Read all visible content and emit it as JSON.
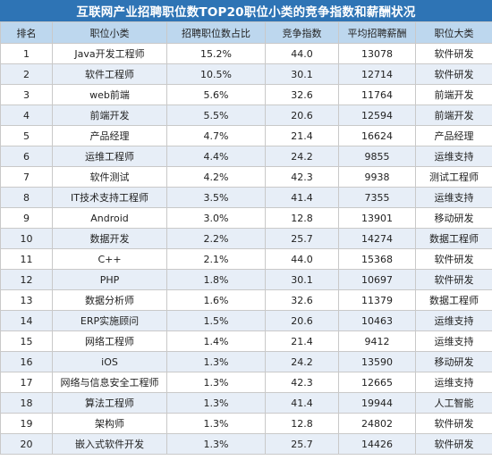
{
  "title": "互联网产业招聘职位数TOP20职位小类的竞争指数和薪酬状况",
  "columns": [
    "排名",
    "职位小类",
    "招聘职位数占比",
    "竞争指数",
    "平均招聘薪酬",
    "职位大类"
  ],
  "rows": [
    [
      "1",
      "Java开发工程师",
      "15.2%",
      "44.0",
      "13078",
      "软件研发"
    ],
    [
      "2",
      "软件工程师",
      "10.5%",
      "30.1",
      "12714",
      "软件研发"
    ],
    [
      "3",
      "web前端",
      "5.6%",
      "32.6",
      "11764",
      "前端开发"
    ],
    [
      "4",
      "前端开发",
      "5.5%",
      "20.6",
      "12594",
      "前端开发"
    ],
    [
      "5",
      "产品经理",
      "4.7%",
      "21.4",
      "16624",
      "产品经理"
    ],
    [
      "6",
      "运维工程师",
      "4.4%",
      "24.2",
      "9855",
      "运维支持"
    ],
    [
      "7",
      "软件测试",
      "4.2%",
      "42.3",
      "9938",
      "测试工程师"
    ],
    [
      "8",
      "IT技术支持工程师",
      "3.5%",
      "41.4",
      "7355",
      "运维支持"
    ],
    [
      "9",
      "Android",
      "3.0%",
      "12.8",
      "13901",
      "移动研发"
    ],
    [
      "10",
      "数据开发",
      "2.2%",
      "25.7",
      "14274",
      "数据工程师"
    ],
    [
      "11",
      "C++",
      "2.1%",
      "44.0",
      "15368",
      "软件研发"
    ],
    [
      "12",
      "PHP",
      "1.8%",
      "30.1",
      "10697",
      "软件研发"
    ],
    [
      "13",
      "数据分析师",
      "1.6%",
      "32.6",
      "11379",
      "数据工程师"
    ],
    [
      "14",
      "ERP实施顾问",
      "1.5%",
      "20.6",
      "10463",
      "运维支持"
    ],
    [
      "15",
      "网络工程师",
      "1.4%",
      "21.4",
      "9412",
      "运维支持"
    ],
    [
      "16",
      "iOS",
      "1.3%",
      "24.2",
      "13590",
      "移动研发"
    ],
    [
      "17",
      "网络与信息安全工程师",
      "1.3%",
      "42.3",
      "12665",
      "运维支持"
    ],
    [
      "18",
      "算法工程师",
      "1.3%",
      "41.4",
      "19944",
      "人工智能"
    ],
    [
      "19",
      "架构师",
      "1.3%",
      "12.8",
      "24802",
      "软件研发"
    ],
    [
      "20",
      "嵌入式软件开发",
      "1.3%",
      "25.7",
      "14426",
      "软件研发"
    ]
  ]
}
